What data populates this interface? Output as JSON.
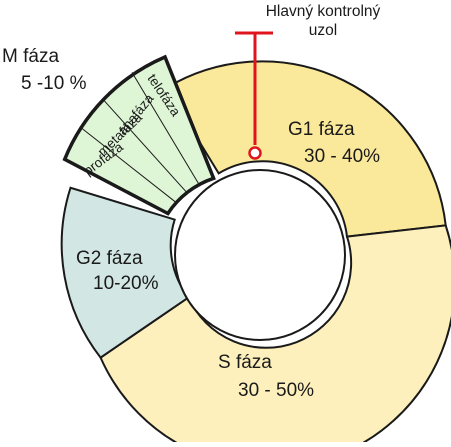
{
  "diagram": {
    "checkpoint": {
      "line1": "Hlavný kontrolný",
      "line2": "uzol",
      "color": "#e0141c"
    },
    "phases": {
      "g1": {
        "name": "G1 fáza",
        "percent": "30 - 40%",
        "color": "#fbe99b"
      },
      "s": {
        "name": "S fáza",
        "percent": "30 - 50%",
        "color": "#fdf0bd"
      },
      "g2": {
        "name": "G2 fáza",
        "percent": "10-20%",
        "color": "#d2e6e3"
      },
      "m": {
        "name": "M fáza",
        "percent": "5 -10 %",
        "color": "#def6d6"
      }
    },
    "mitosis_subphases": [
      "profáza",
      "metafáza",
      "anafáza",
      "telofáza"
    ]
  }
}
